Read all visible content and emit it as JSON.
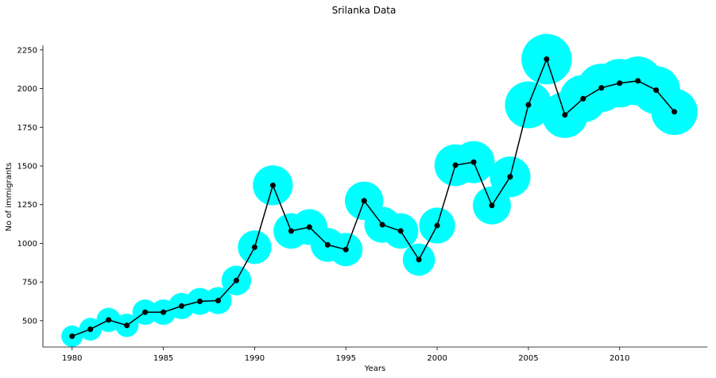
{
  "chart_data": {
    "type": "line",
    "title": "Srilanka Data",
    "xlabel": "Years",
    "ylabel": "No of immigrants",
    "x": [
      1980,
      1981,
      1982,
      1983,
      1984,
      1985,
      1986,
      1987,
      1988,
      1989,
      1990,
      1991,
      1992,
      1993,
      1994,
      1995,
      1996,
      1997,
      1998,
      1999,
      2000,
      2001,
      2002,
      2003,
      2004,
      2005,
      2006,
      2007,
      2008,
      2009,
      2010,
      2011,
      2012,
      2013
    ],
    "values": [
      400,
      445,
      505,
      470,
      555,
      555,
      595,
      625,
      630,
      760,
      975,
      1375,
      1080,
      1105,
      990,
      960,
      1275,
      1120,
      1080,
      895,
      1115,
      1505,
      1525,
      1245,
      1430,
      1895,
      2190,
      1830,
      1935,
      2005,
      2035,
      2050,
      1990,
      1850
    ],
    "xticks": [
      "1980",
      "1985",
      "1990",
      "1995",
      "2000",
      "2005",
      "2010"
    ],
    "yticks": [
      "500",
      "750",
      "1000",
      "1250",
      "1500",
      "1750",
      "2000",
      "2250"
    ],
    "xlim": [
      1978.4,
      2014.8
    ],
    "ylim": [
      330,
      2280
    ],
    "grid": false,
    "legend": "none",
    "line_color": "#000000",
    "marker_color": "#000000",
    "bubble_color": "#00ffff",
    "bubble_size_encodes": "values"
  }
}
